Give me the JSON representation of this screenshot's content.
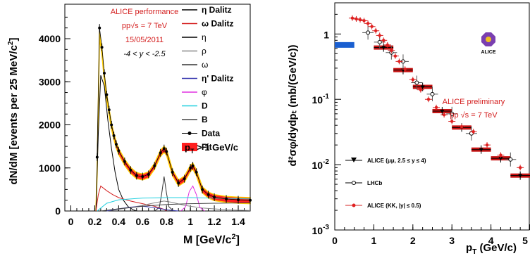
{
  "chart_data": [
    {
      "type": "line",
      "xlabel": "M [GeV/c",
      "xlabel_sup": "2",
      "xlabel_end": "]",
      "ylabel": "dN/dM [events per 25 MeV/c",
      "ylabel_sup": "2",
      "ylabel_end": "]",
      "xlim": [
        -0.05,
        1.5
      ],
      "ylim": [
        0,
        4800
      ],
      "xticks": [
        "0",
        "0.2",
        "0.4",
        "0.6",
        "0.8",
        "1",
        "1.2",
        "1.4"
      ],
      "xtick_values": [
        0,
        0.2,
        0.4,
        0.6,
        0.8,
        1.0,
        1.2,
        1.4
      ],
      "yticks": [
        "0",
        "1000",
        "2000",
        "3000",
        "4000"
      ],
      "ytick_values": [
        0,
        1000,
        2000,
        3000,
        4000
      ],
      "annotations": [
        "ALICE performance",
        "pp√s = 7 TeV",
        "15/05/2011",
        "-4 < y < -2.5"
      ],
      "cut_label": "p",
      "cut_label_sub": "T",
      "cut_label_end": " > 1 GeV/c",
      "legend": [
        {
          "label": "η Dalitz",
          "color": "#000000",
          "bold": true,
          "symbol": "line"
        },
        {
          "label": "ω Dalitz",
          "color": "#d42020",
          "bold": true,
          "symbol": "line"
        },
        {
          "label": "η",
          "color": "#000000",
          "bold": false,
          "symbol": "line"
        },
        {
          "label": "ρ",
          "color": "#888888",
          "bold": false,
          "symbol": "line"
        },
        {
          "label": "ω",
          "color": "#333333",
          "bold": false,
          "symbol": "line"
        },
        {
          "label": "η' Dalitz",
          "color": "#3a3ab0",
          "bold": true,
          "symbol": "line"
        },
        {
          "label": "φ",
          "color": "#e030e0",
          "bold": false,
          "symbol": "line"
        },
        {
          "label": "D",
          "color": "#20d0e0",
          "bold": true,
          "symbol": "line"
        },
        {
          "label": "B",
          "color": "#444444",
          "bold": true,
          "symbol": "line"
        },
        {
          "label": "Data",
          "color": "#000000",
          "bold": true,
          "symbol": "marker"
        },
        {
          "label": "Fit",
          "color": "#ff2020",
          "bold": true,
          "symbol": "box"
        }
      ],
      "series": [
        {
          "name": "Data",
          "color": "#000000",
          "x": [
            0.22,
            0.24,
            0.26,
            0.28,
            0.3,
            0.32,
            0.34,
            0.36,
            0.38,
            0.4,
            0.45,
            0.5,
            0.55,
            0.6,
            0.65,
            0.7,
            0.75,
            0.78,
            0.8,
            0.85,
            0.9,
            0.95,
            1.0,
            1.02,
            1.05,
            1.1,
            1.15,
            1.2,
            1.3,
            1.4,
            1.5
          ],
          "y": [
            1250,
            4250,
            3800,
            3200,
            2700,
            2350,
            2000,
            1750,
            1550,
            1400,
            1150,
            950,
            820,
            800,
            850,
            1050,
            1350,
            1450,
            1380,
            900,
            650,
            750,
            1000,
            1050,
            900,
            500,
            380,
            320,
            280,
            260,
            250
          ]
        },
        {
          "name": "Fit",
          "color": "#ff2020",
          "x": [
            0.21,
            0.22,
            0.24,
            0.26,
            0.28,
            0.3,
            0.32,
            0.34,
            0.36,
            0.38,
            0.4,
            0.45,
            0.5,
            0.55,
            0.6,
            0.65,
            0.7,
            0.75,
            0.78,
            0.8,
            0.85,
            0.9,
            0.95,
            1.0,
            1.02,
            1.05,
            1.1,
            1.15,
            1.2,
            1.3,
            1.4,
            1.5
          ],
          "y": [
            0,
            900,
            4100,
            3700,
            3100,
            2650,
            2300,
            1970,
            1730,
            1530,
            1380,
            1130,
            940,
            820,
            790,
            840,
            1040,
            1340,
            1430,
            1370,
            890,
            650,
            740,
            990,
            1040,
            890,
            490,
            370,
            310,
            270,
            250,
            240
          ]
        },
        {
          "name": "η Dalitz",
          "color": "#000000",
          "x": [
            0.21,
            0.23,
            0.25,
            0.28,
            0.31,
            0.34,
            0.37,
            0.4,
            0.44,
            0.48,
            0.52,
            0.55
          ],
          "y": [
            0,
            1800,
            3150,
            2900,
            2100,
            1450,
            900,
            500,
            250,
            100,
            30,
            0
          ]
        },
        {
          "name": "ω Dalitz",
          "color": "#d42020",
          "x": [
            0.21,
            0.23,
            0.25,
            0.3,
            0.35,
            0.4,
            0.5,
            0.6,
            0.7,
            0.78,
            0.8
          ],
          "y": [
            0,
            380,
            580,
            470,
            380,
            310,
            230,
            170,
            110,
            40,
            0
          ]
        },
        {
          "name": "ρ",
          "color": "#888888",
          "x": [
            0.3,
            0.4,
            0.5,
            0.6,
            0.7,
            0.78,
            0.85,
            0.95,
            1.1,
            1.3,
            1.5
          ],
          "y": [
            0,
            40,
            80,
            130,
            190,
            230,
            200,
            130,
            70,
            30,
            10
          ]
        },
        {
          "name": "ω",
          "color": "#333333",
          "x": [
            0.7,
            0.74,
            0.76,
            0.78,
            0.8,
            0.82,
            0.86
          ],
          "y": [
            0,
            80,
            400,
            800,
            420,
            100,
            0
          ]
        },
        {
          "name": "η' Dalitz",
          "color": "#3a3ab0",
          "x": [
            0.3,
            0.4,
            0.5,
            0.6,
            0.7,
            0.8,
            0.9
          ],
          "y": [
            0,
            50,
            90,
            110,
            80,
            30,
            0
          ]
        },
        {
          "name": "φ",
          "color": "#e030e0",
          "x": [
            0.92,
            0.96,
            0.99,
            1.02,
            1.05,
            1.08,
            1.12
          ],
          "y": [
            0,
            100,
            450,
            580,
            380,
            80,
            0
          ]
        },
        {
          "name": "D",
          "color": "#20d0e0",
          "x": [
            0.22,
            0.3,
            0.4,
            0.6,
            0.8,
            1.0,
            1.2,
            1.5
          ],
          "y": [
            0,
            180,
            260,
            300,
            310,
            310,
            300,
            280
          ]
        },
        {
          "name": "B",
          "color": "#444444",
          "x": [
            0.25,
            0.4,
            0.6,
            0.8,
            1.0,
            1.2,
            1.5
          ],
          "y": [
            0,
            50,
            110,
            150,
            170,
            180,
            190
          ]
        }
      ]
    },
    {
      "type": "scatter",
      "xlabel": "p",
      "xlabel_sub": "T",
      "xlabel_end": " (GeV/c)",
      "ylabel": "d²σφ/dydpₜ (mb/(GeV/c))",
      "xlim": [
        0,
        5
      ],
      "ylim": [
        0.001,
        3
      ],
      "log_y": true,
      "xticks": [
        "0",
        "1",
        "2",
        "3",
        "4",
        "5"
      ],
      "xtick_values": [
        0,
        1,
        2,
        3,
        4,
        5
      ],
      "yticks": [
        {
          "base": "1",
          "exp": "",
          "value": 1
        },
        {
          "base": "10",
          "exp": "-1",
          "value": 0.1
        },
        {
          "base": "10",
          "exp": "-2",
          "value": 0.01
        },
        {
          "base": "10",
          "exp": "-3",
          "value": 0.001
        }
      ],
      "annotations": [
        "ALICE preliminary",
        "pp √s = 7 TeV"
      ],
      "logo_text": "ALICE",
      "legend": [
        {
          "label": "ALICE (μμ, 2.5 ≤ y ≤ 4)",
          "marker": "triangle-down"
        },
        {
          "label": "LHCb",
          "marker": "open-circle"
        },
        {
          "label": "ALICE (KK, |y| ≤ 0.5)",
          "marker": "red-circle"
        }
      ],
      "series": [
        {
          "name": "ALICE (μμ, 2.5 ≤ y ≤ 4)",
          "color": "#000000",
          "x": [
            0.5,
            1.25,
            1.75,
            2.25,
            2.75,
            3.25,
            3.75,
            4.25,
            4.75
          ],
          "xerr": [
            0.5,
            0.25,
            0.25,
            0.25,
            0.25,
            0.25,
            0.25,
            0.25,
            0.25
          ],
          "y": [
            0.68,
            0.62,
            0.28,
            0.155,
            0.066,
            0.037,
            0.017,
            0.0125,
            0.0068
          ]
        },
        {
          "name": "LHCb",
          "color": "#000000",
          "x": [
            0.85,
            1.15,
            1.45,
            1.75,
            2.1,
            2.5,
            3.0,
            3.5,
            4.5
          ],
          "y": [
            1.05,
            0.75,
            0.52,
            0.38,
            0.18,
            0.12,
            0.06,
            0.03,
            0.012
          ]
        },
        {
          "name": "ALICE (KK, |y| ≤ 0.5)",
          "color": "#d42020",
          "x": [
            0.45,
            0.55,
            0.65,
            0.75,
            0.85,
            0.95,
            1.05,
            1.15,
            1.25,
            1.35,
            1.45,
            1.55,
            1.65,
            1.8,
            2.0,
            2.2,
            2.4,
            2.6,
            2.8,
            3.0,
            3.25,
            3.55,
            3.9,
            4.25,
            4.75
          ],
          "y": [
            1.75,
            1.7,
            1.65,
            1.6,
            1.45,
            1.3,
            1.12,
            0.95,
            0.8,
            0.68,
            0.56,
            0.46,
            0.38,
            0.29,
            0.2,
            0.14,
            0.1,
            0.075,
            0.058,
            0.046,
            0.038,
            0.032,
            0.02,
            0.014,
            0.009
          ]
        }
      ]
    }
  ]
}
